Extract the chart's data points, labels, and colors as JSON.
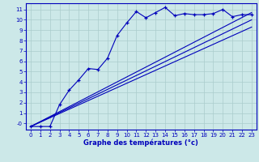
{
  "xlabel": "Graphe des températures (°c)",
  "background_color": "#cce8e8",
  "grid_color": "#aacccc",
  "line_color": "#0000bb",
  "x_hours": [
    0,
    1,
    2,
    3,
    4,
    5,
    6,
    7,
    8,
    9,
    10,
    11,
    12,
    13,
    14,
    15,
    16,
    17,
    18,
    19,
    20,
    21,
    22,
    23
  ],
  "temp_main": [
    -0.3,
    -0.3,
    -0.3,
    1.8,
    3.2,
    4.2,
    5.3,
    5.2,
    6.3,
    8.5,
    9.7,
    10.8,
    10.2,
    10.7,
    11.2,
    10.4,
    10.6,
    10.5,
    10.5,
    10.6,
    11.0,
    10.3,
    10.5,
    10.5
  ],
  "trend_upper": [
    -0.3,
    10.7
  ],
  "trend_lower": [
    -0.3,
    9.3
  ],
  "trend_mid": [
    -0.3,
    10.0
  ],
  "ylim": [
    -0.6,
    11.6
  ],
  "xlim": [
    -0.5,
    23.5
  ],
  "yticks": [
    0,
    1,
    2,
    3,
    4,
    5,
    6,
    7,
    8,
    9,
    10,
    11
  ],
  "ytick_labels": [
    "-0",
    "1",
    "2",
    "3",
    "4",
    "5",
    "6",
    "7",
    "8",
    "9",
    "10",
    "11"
  ],
  "xticks": [
    0,
    1,
    2,
    3,
    4,
    5,
    6,
    7,
    8,
    9,
    10,
    11,
    12,
    13,
    14,
    15,
    16,
    17,
    18,
    19,
    20,
    21,
    22,
    23
  ]
}
